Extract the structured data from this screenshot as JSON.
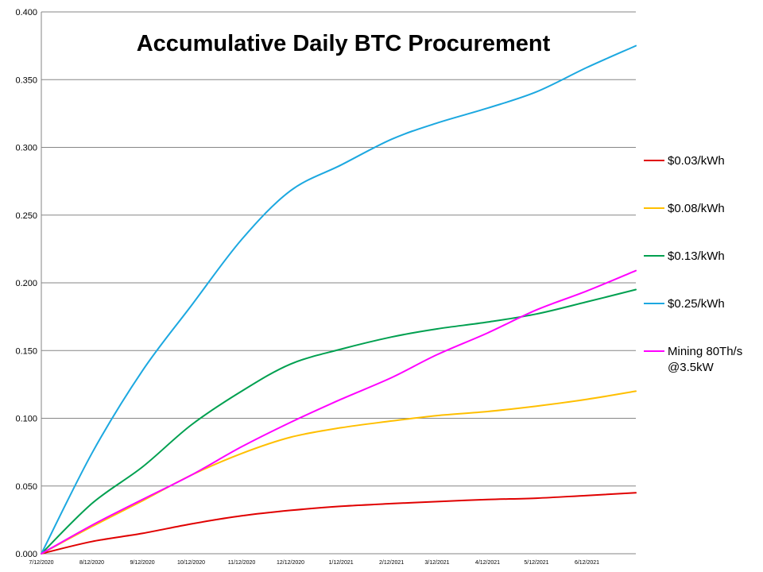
{
  "chart_data": {
    "type": "line",
    "title": "Accumulative Daily BTC Procurement",
    "xlabel": "",
    "ylabel": "",
    "ylim": [
      0,
      0.4
    ],
    "y_ticks": [
      "0.000",
      "0.050",
      "0.100",
      "0.150",
      "0.200",
      "0.250",
      "0.300",
      "0.350",
      "0.400"
    ],
    "x_ticks": [
      "7/12/2020",
      "8/12/2020",
      "9/12/2020",
      "10/12/2020",
      "11/12/2020",
      "12/12/2020",
      "1/12/2021",
      "2/12/2021",
      "3/12/2021",
      "4/12/2021",
      "5/12/2021",
      "6/12/2021"
    ],
    "x_range": [
      "7/12/2020",
      "7/12/2021"
    ],
    "grid": "horizontal",
    "legend_position": "right",
    "x": [
      "7/12/2020",
      "8/12/2020",
      "9/12/2020",
      "10/12/2020",
      "11/12/2020",
      "12/12/2020",
      "1/12/2021",
      "2/12/2021",
      "3/12/2021",
      "4/12/2021",
      "5/12/2021",
      "6/12/2021",
      "7/12/2021"
    ],
    "series": [
      {
        "name": "$0.03/kWh",
        "color": "#e00000",
        "values": [
          0.0,
          0.009,
          0.015,
          0.022,
          0.028,
          0.032,
          0.035,
          0.037,
          0.0385,
          0.04,
          0.041,
          0.043,
          0.045
        ]
      },
      {
        "name": "$0.08/kWh",
        "color": "#ffbf00",
        "values": [
          0.0,
          0.02,
          0.039,
          0.058,
          0.074,
          0.086,
          0.093,
          0.098,
          0.102,
          0.105,
          0.109,
          0.114,
          0.12
        ]
      },
      {
        "name": "$0.13/kWh",
        "color": "#00a050",
        "values": [
          0.0,
          0.037,
          0.064,
          0.095,
          0.12,
          0.14,
          0.151,
          0.16,
          0.166,
          0.171,
          0.177,
          0.186,
          0.195
        ]
      },
      {
        "name": "$0.25/kWh",
        "color": "#1ca8e0",
        "values": [
          0.0,
          0.074,
          0.135,
          0.183,
          0.232,
          0.268,
          0.287,
          0.306,
          0.318,
          0.329,
          0.341,
          0.359,
          0.375
        ]
      },
      {
        "name": "Mining 80Th/s @3.5kW",
        "color": "#ff00ff",
        "values": [
          0.0,
          0.021,
          0.04,
          0.058,
          0.079,
          0.097,
          0.114,
          0.13,
          0.147,
          0.163,
          0.18,
          0.194,
          0.209
        ]
      }
    ]
  }
}
